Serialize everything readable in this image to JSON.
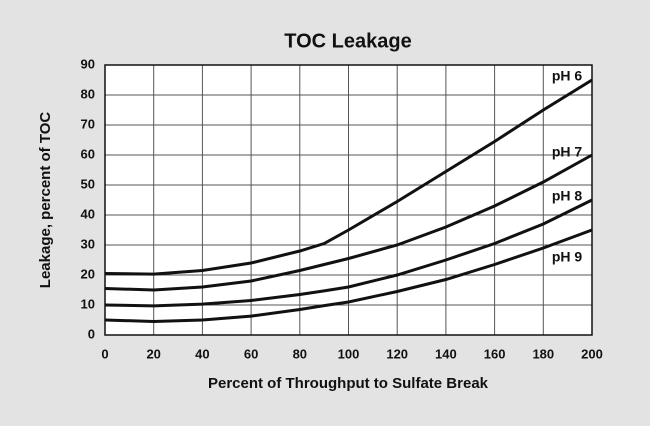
{
  "chart_data": {
    "type": "line",
    "title": "TOC Leakage",
    "x_label": "Percent of Throughput to Sulfate Break",
    "y_label": "Leakage, percent of TOC",
    "x": [
      0,
      20,
      40,
      60,
      80,
      90,
      100,
      120,
      140,
      160,
      180,
      200
    ],
    "series": [
      {
        "name": "pH 6",
        "color": "#111111",
        "values": [
          20.5,
          20.3,
          21.5,
          24,
          28,
          30.5,
          35,
          44.5,
          54.5,
          64.5,
          75,
          85
        ]
      },
      {
        "name": "pH 7",
        "color": "#111111",
        "values": [
          15.5,
          15,
          16,
          18,
          21.5,
          23.5,
          25.5,
          30,
          36,
          43,
          51,
          60
        ]
      },
      {
        "name": "pH 8",
        "color": "#111111",
        "values": [
          10,
          9.7,
          10.3,
          11.5,
          13.5,
          14.7,
          16,
          20,
          25,
          30.5,
          37,
          45
        ]
      },
      {
        "name": "pH 9",
        "color": "#111111",
        "values": [
          5,
          4.5,
          5,
          6.3,
          8.5,
          9.8,
          11,
          14.5,
          18.5,
          23.5,
          29,
          35
        ]
      }
    ],
    "xlim": [
      0,
      200
    ],
    "ylim": [
      0,
      90
    ],
    "xticks": [
      0,
      20,
      40,
      60,
      80,
      100,
      120,
      140,
      160,
      180,
      200
    ],
    "yticks": [
      0,
      10,
      20,
      30,
      40,
      50,
      60,
      70,
      80,
      90
    ],
    "grid": true
  }
}
